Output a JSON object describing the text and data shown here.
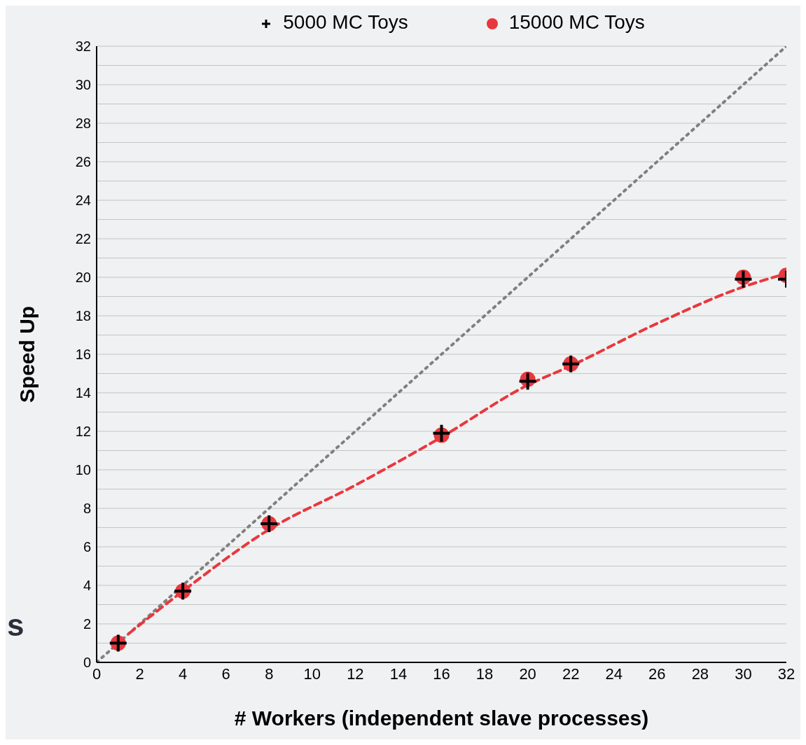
{
  "chart_data": {
    "type": "scatter",
    "xlabel": "# Workers (independent slave processes)",
    "ylabel": "Speed Up",
    "xlim": [
      0,
      32
    ],
    "xticks": [
      0,
      2,
      4,
      6,
      8,
      10,
      12,
      14,
      16,
      18,
      20,
      22,
      24,
      26,
      28,
      30,
      32
    ],
    "ylim": [
      0,
      32
    ],
    "yticks": [
      0,
      {
        "value": 1,
        "label": null
      },
      2,
      {
        "value": 3,
        "label": null
      },
      4,
      {
        "value": 5,
        "label": null
      },
      6,
      {
        "value": 7,
        "label": null
      },
      8,
      {
        "value": 9,
        "label": null
      },
      10,
      {
        "value": 11,
        "label": null
      },
      12,
      {
        "value": 13,
        "label": null
      },
      14,
      {
        "value": 15,
        "label": null
      },
      16,
      {
        "value": 17,
        "label": null
      },
      18,
      {
        "value": 19,
        "label": null
      },
      20,
      {
        "value": 21,
        "label": null
      },
      22,
      {
        "value": 23,
        "label": null
      },
      24,
      {
        "value": 25,
        "label": null
      },
      26,
      {
        "value": 27,
        "label": null
      },
      28,
      {
        "value": 29,
        "label": null
      },
      30,
      {
        "value": 31,
        "label": null
      },
      32
    ],
    "grid": "y",
    "legend": "top",
    "x": [
      1,
      4,
      8,
      16,
      20,
      22,
      30,
      32
    ],
    "series": [
      {
        "name": "5000 MC Toys",
        "color": "#000000",
        "marker": "cross",
        "values": [
          1,
          3.7,
          7.2,
          11.9,
          14.6,
          15.5,
          19.9,
          19.9
        ]
      },
      {
        "name": "15000 MC Toys",
        "color": "#e8383d",
        "marker": "circle",
        "values": [
          1,
          3.7,
          7.2,
          11.8,
          14.7,
          15.5,
          20,
          20.1
        ]
      },
      {
        "type": "line",
        "color": "#808080",
        "line_style": "dotted",
        "marker": "none",
        "x": [
          0,
          32
        ],
        "values": [
          0,
          32
        ]
      },
      {
        "type": "line",
        "color": "#e8383d",
        "line_style": "dashed",
        "marker": "none",
        "x": [
          1.5,
          4,
          8,
          12,
          16,
          20,
          22,
          26,
          30,
          31.7
        ],
        "values": [
          1.5,
          3.7,
          6.9,
          9.2,
          11.7,
          14.4,
          15.4,
          17.6,
          19.5,
          20.1
        ]
      }
    ],
    "annotations": [
      "s"
    ]
  }
}
